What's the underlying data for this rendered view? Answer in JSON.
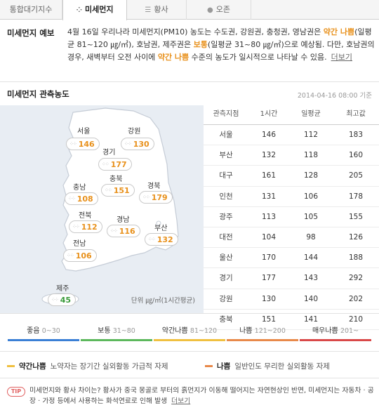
{
  "tabs": [
    {
      "label": "통합대기지수",
      "icon": ""
    },
    {
      "label": "미세먼지",
      "icon": "dust-icon"
    },
    {
      "label": "황사",
      "icon": "yellow-dust-icon"
    },
    {
      "label": "오존",
      "icon": "ozone-icon"
    }
  ],
  "forecast": {
    "label": "미세먼지 예보",
    "text_1": "4월 16일 우리나라 미세먼지(PM10) 농도는 수도권, 강원권, 충청권, 영남권은 ",
    "hl_1": "약간 나쁨",
    "text_2": "(일평균 81~120 ㎍/㎥), 호남권, 제주권은 ",
    "hl_2": "보통",
    "text_3": "(일평균 31~80 ㎍/㎥)으로 예상됨. 다만, 호남권의 경우, 새벽부터 오전 사이에 ",
    "hl_3": "약간 나쁨",
    "text_4": " 수준의 농도가 일시적으로 나타날 수 있음.",
    "more": "더보기"
  },
  "observation": {
    "title": "미세먼지 관측농도",
    "timestamp": "2014-04-16 08:00 기준",
    "unit": "단위 ㎍/㎥(1시간평균)"
  },
  "map_regions": [
    {
      "name": "서울",
      "value": "146",
      "level": "y"
    },
    {
      "name": "강원",
      "value": "130",
      "level": "y"
    },
    {
      "name": "경기",
      "value": "177",
      "level": "y"
    },
    {
      "name": "충북",
      "value": "151",
      "level": "y"
    },
    {
      "name": "충남",
      "value": "108",
      "level": "y"
    },
    {
      "name": "경북",
      "value": "179",
      "level": "y"
    },
    {
      "name": "전북",
      "value": "112",
      "level": "y"
    },
    {
      "name": "경남",
      "value": "116",
      "level": "y"
    },
    {
      "name": "부산",
      "value": "132",
      "level": "y"
    },
    {
      "name": "전남",
      "value": "106",
      "level": "y"
    },
    {
      "name": "제주",
      "value": "45",
      "level": "g"
    }
  ],
  "table": {
    "headers": [
      "관측지점",
      "1시간",
      "일평균",
      "최고값"
    ],
    "rows": [
      [
        "서울",
        "146",
        "112",
        "183"
      ],
      [
        "부산",
        "132",
        "118",
        "160"
      ],
      [
        "대구",
        "161",
        "128",
        "205"
      ],
      [
        "인천",
        "131",
        "106",
        "178"
      ],
      [
        "광주",
        "113",
        "105",
        "155"
      ],
      [
        "대전",
        "104",
        "98",
        "126"
      ],
      [
        "울산",
        "170",
        "144",
        "188"
      ],
      [
        "경기",
        "177",
        "143",
        "292"
      ],
      [
        "강원",
        "130",
        "140",
        "202"
      ],
      [
        "충북",
        "151",
        "141",
        "210"
      ]
    ]
  },
  "scale": [
    {
      "label": "좋음",
      "range": "0~30",
      "color": "#3a7fd5"
    },
    {
      "label": "보통",
      "range": "31~80",
      "color": "#5cb85c"
    },
    {
      "label": "약간나쁨",
      "range": "81~120",
      "color": "#f0c040"
    },
    {
      "label": "나쁨",
      "range": "121~200",
      "color": "#e8894a"
    },
    {
      "label": "매우나쁨",
      "range": "201~",
      "color": "#d94848"
    }
  ],
  "advisories": [
    {
      "name": "약간나쁨",
      "desc": "노약자는 장기간 실외활동 가급적 자제",
      "color": "#f0c040"
    },
    {
      "name": "나쁨",
      "desc": "일반인도 무리한 실외활동 자제",
      "color": "#e8894a"
    }
  ],
  "tip": {
    "badge": "TIP",
    "text": "미세먼지와 황사 차이는? 황사가 중국 몽골로 부터의 흙먼지가 이동해 떨어지는 자연현상인 반면, 미세먼지는 자동차 · 공장 · 가정 등에서 사용하는 화석연료로 인해 발생",
    "more": "더보기"
  }
}
